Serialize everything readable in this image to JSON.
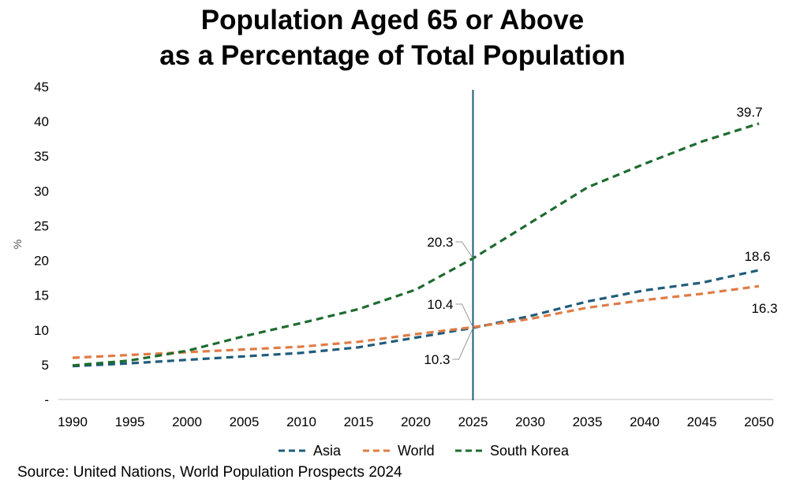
{
  "chart_data": {
    "type": "line",
    "title": "Population Aged 65 or Above",
    "subtitle": "as a Percentage of Total Population",
    "xlabel": "",
    "ylabel": "%",
    "x": [
      1990,
      1995,
      2000,
      2005,
      2010,
      2015,
      2020,
      2025,
      2030,
      2035,
      2040,
      2045,
      2050
    ],
    "x_ticks": [
      "1990",
      "1995",
      "2000",
      "2005",
      "2010",
      "2015",
      "2020",
      "2025",
      "2030",
      "2035",
      "2040",
      "2045",
      "2050"
    ],
    "y_ticks": [
      "-",
      "5",
      "10",
      "15",
      "20",
      "25",
      "30",
      "35",
      "40",
      "45"
    ],
    "ylim": [
      0,
      45
    ],
    "grid": false,
    "legend_position": "bottom",
    "vertical_marker_x": 2025,
    "series": [
      {
        "name": "Asia",
        "color": "#1f5c7a",
        "values": [
          4.8,
          5.2,
          5.7,
          6.2,
          6.7,
          7.5,
          8.9,
          10.3,
          12.0,
          14.1,
          15.7,
          16.8,
          18.6
        ]
      },
      {
        "name": "World",
        "color": "#e07b45",
        "values": [
          6.0,
          6.4,
          6.8,
          7.2,
          7.6,
          8.3,
          9.4,
          10.4,
          11.6,
          13.2,
          14.3,
          15.2,
          16.3
        ]
      },
      {
        "name": "South Korea",
        "color": "#1e6b30",
        "values": [
          4.9,
          5.6,
          7.0,
          9.1,
          11.0,
          13.0,
          15.8,
          20.3,
          25.4,
          30.5,
          33.9,
          37.1,
          39.7
        ]
      }
    ],
    "annotations": [
      {
        "text": "20.3",
        "series": "South Korea",
        "x": 2025
      },
      {
        "text": "10.4",
        "series": "World",
        "x": 2025
      },
      {
        "text": "10.3",
        "series": "Asia",
        "x": 2025
      },
      {
        "text": "39.7",
        "series": "South Korea",
        "x": 2050
      },
      {
        "text": "18.6",
        "series": "Asia",
        "x": 2050
      },
      {
        "text": "16.3",
        "series": "World",
        "x": 2050
      }
    ]
  },
  "source": "Source: United Nations, World Population Prospects 2024"
}
